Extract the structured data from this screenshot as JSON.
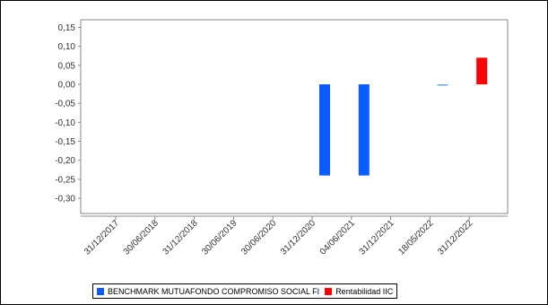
{
  "chart_data": {
    "type": "bar",
    "title": "",
    "xlabel": "",
    "ylabel": "",
    "categories": [
      "31/12/2017",
      "30/06/2018",
      "31/12/2018",
      "30/06/2019",
      "30/06/2020",
      "31/12/2020",
      "04/06/2021",
      "31/12/2021",
      "18/05/2022",
      "31/12/2022"
    ],
    "yticks": [
      "0,15",
      "0,10",
      "0,05",
      "0,00",
      "-0,05",
      "-0,10",
      "-0,15",
      "-0,20",
      "-0,25",
      "-0,30"
    ],
    "ylim": [
      -0.34,
      0.17
    ],
    "grid": false,
    "legend_position": "bottom",
    "series": [
      {
        "name": "BENCHMARK MUTUAFONDO COMPROMISO SOCIAL FI",
        "color": "#0a5cff",
        "values": [
          null,
          null,
          null,
          null,
          null,
          -0.24,
          -0.24,
          null,
          -0.002,
          null
        ]
      },
      {
        "name": "Rentabilidad IIC",
        "color": "#ff0000",
        "values": [
          null,
          null,
          null,
          null,
          null,
          null,
          null,
          null,
          null,
          0.07
        ]
      }
    ]
  }
}
